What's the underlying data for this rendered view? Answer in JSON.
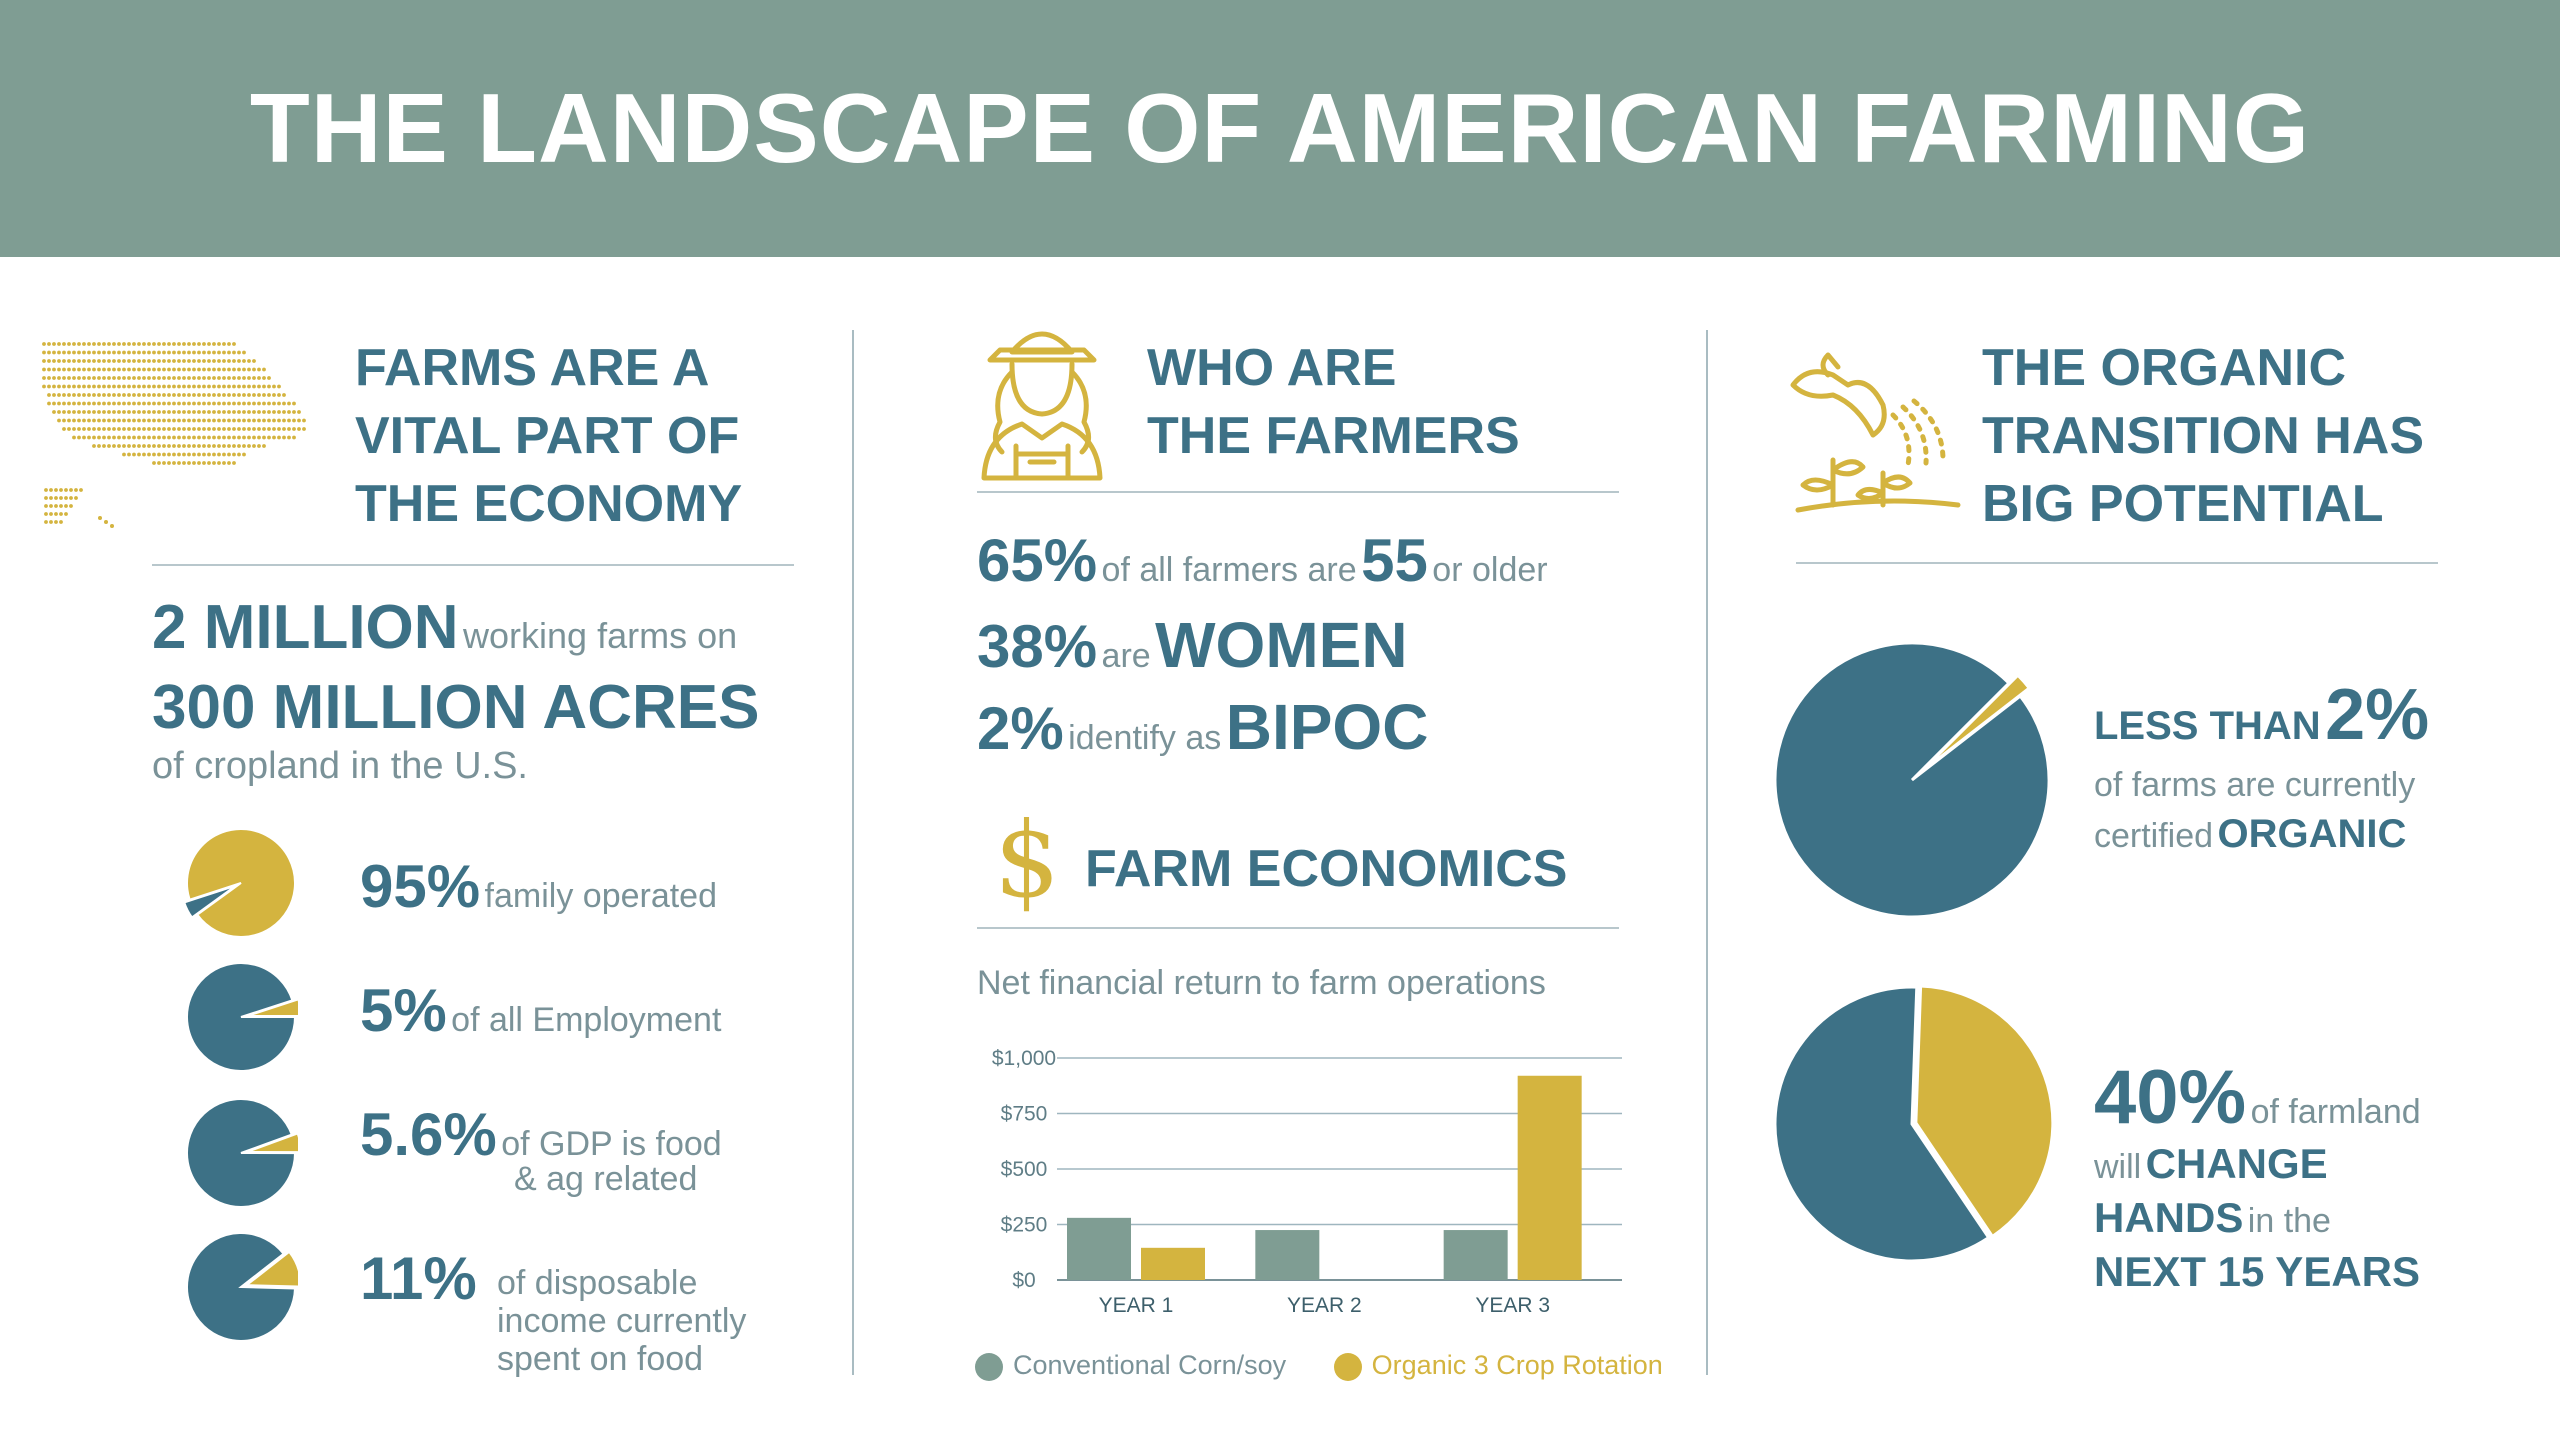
{
  "header": {
    "title": "THE LANDSCAPE OF AMERICAN FARMING"
  },
  "colors": {
    "teal": "#3d7186",
    "gold": "#d4b43f",
    "sage": "#7f9d93",
    "grey_text": "#7a9298"
  },
  "icons": {
    "col1": "usa-dot-map-icon",
    "col2": "farmer-icon",
    "col3": "sprouting-plants-watering-icon",
    "econ": "dollar-sign-icon"
  },
  "economy": {
    "title_lines": [
      "FARMS ARE A",
      "VITAL PART OF",
      "THE ECONOMY"
    ],
    "farms_big": "2 MILLION",
    "farms_small": "working farms on",
    "acres_big": "300 MILLION ACRES",
    "acres_small": "of cropland in the U.S.",
    "stats": [
      {
        "big": "95%",
        "small_lines": [
          "family operated"
        ]
      },
      {
        "big": "5%",
        "small_lines": [
          "of all Employment"
        ]
      },
      {
        "big": "5.6%",
        "small_lines": [
          "of GDP is food",
          "& ag related"
        ]
      },
      {
        "big": "11%",
        "small_lines": [
          "of disposable",
          "income currently",
          "spent on food"
        ]
      }
    ]
  },
  "farmers": {
    "title_lines": [
      "WHO ARE",
      "THE FARMERS"
    ],
    "line1": {
      "pct": "65%",
      "mid": "of all farmers are",
      "num": "55",
      "end": "or older"
    },
    "line2": {
      "pct": "38%",
      "mid": "are",
      "big": "WOMEN"
    },
    "line3": {
      "pct": "2%",
      "mid": "identify as",
      "big": "BIPOC"
    }
  },
  "economics": {
    "title": "FARM ECONOMICS",
    "subtitle": "Net financial return to farm operations"
  },
  "organic": {
    "title_lines": [
      "THE ORGANIC",
      "TRANSITION HAS",
      "BIG POTENTIAL"
    ],
    "stat1": {
      "lead": "LESS THAN",
      "big": "2%",
      "line2": "of farms are currently",
      "line3_small": "certified",
      "line3_big": "ORGANIC"
    },
    "stat2": {
      "big": "40%",
      "small1": "of farmland",
      "small2": "will",
      "big2": "CHANGE",
      "big3": "HANDS",
      "small3": "in the",
      "big4": "NEXT 15 YEARS"
    }
  },
  "chart_data": [
    {
      "type": "pie",
      "labels": [
        "family operated",
        "other"
      ],
      "values": [
        95,
        5
      ]
    },
    {
      "type": "pie",
      "labels": [
        "of all Employment",
        "other"
      ],
      "values": [
        5,
        95
      ]
    },
    {
      "type": "pie",
      "labels": [
        "of GDP is food & ag related",
        "other"
      ],
      "values": [
        5.6,
        94.4
      ]
    },
    {
      "type": "pie",
      "labels": [
        "of disposable income currently spent on food",
        "other"
      ],
      "values": [
        11,
        89
      ]
    },
    {
      "type": "bar",
      "title": "Net financial return to farm operations",
      "categories": [
        "YEAR 1",
        "YEAR 2",
        "YEAR 3"
      ],
      "series": [
        {
          "name": "Conventional Corn/soy",
          "color": "#7f9d93",
          "values": [
            280,
            225,
            225
          ]
        },
        {
          "name": "Organic 3 Crop Rotation",
          "color": "#d4b43f",
          "values": [
            145,
            0,
            920
          ]
        }
      ],
      "ylim": [
        0,
        1000
      ],
      "yticks": [
        "$0",
        "$250",
        "$500",
        "$750",
        "$1,000"
      ],
      "ytick_values": [
        0,
        250,
        500,
        750,
        1000
      ],
      "grid": true,
      "legend": "bottom"
    },
    {
      "type": "pie",
      "labels": [
        "certified ORGANIC",
        "other"
      ],
      "values": [
        2,
        98
      ]
    },
    {
      "type": "pie",
      "labels": [
        "farmland that will change hands",
        "other"
      ],
      "values": [
        40,
        60
      ]
    }
  ]
}
